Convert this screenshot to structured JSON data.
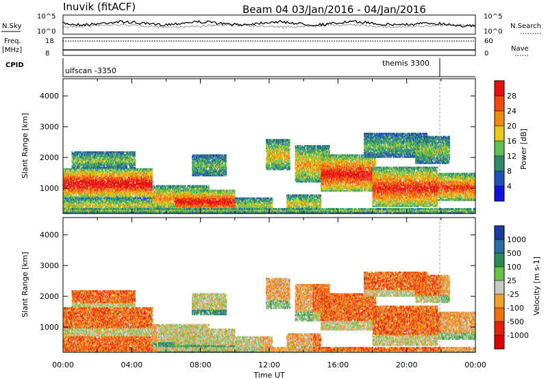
{
  "header": {
    "station": "Inuvik (fitACF)",
    "beam_dates": "Beam 04  03/Jan/2016 - 04/Jan/2016"
  },
  "status_panels": {
    "nsky_label": "N.Sky",
    "nsearch_label": "N.Search",
    "nsky_ticks": [
      "10^5",
      "10^0"
    ],
    "nsearch_ticks": [
      "10^5",
      "10^0"
    ],
    "freq_label_1": "Freq.",
    "freq_label_2": "[MHz]",
    "freq_ticks": [
      "18",
      "8"
    ],
    "nave_label": "Nave",
    "nave_ticks": [
      "60",
      "0"
    ],
    "cpid_label": "CPID",
    "cpid_segments": [
      "ulfscan -3350",
      "themis 3300"
    ]
  },
  "chart_data": [
    {
      "type": "heatmap",
      "name": "power",
      "xlabel": "",
      "ylabel": "Slant Range [km]",
      "yticks": [
        1000,
        2000,
        3000,
        4000
      ],
      "ylim": [
        180,
        4560
      ],
      "xlim_hours": [
        0,
        24
      ],
      "colorbar": {
        "label": "Power [dB]",
        "ticks": [
          "4",
          "8",
          "12",
          "16",
          "20",
          "24",
          "28"
        ],
        "colors": [
          "#1010e0",
          "#2050b8",
          "#2e8a6a",
          "#5fc05a",
          "#e8c81a",
          "#f08a10",
          "#f04a10",
          "#e81010"
        ]
      }
    },
    {
      "type": "heatmap",
      "name": "velocity",
      "xlabel": "Time UT",
      "ylabel": "Slant Range [km]",
      "yticks": [
        1000,
        2000,
        3000,
        4000
      ],
      "ylim": [
        180,
        4560
      ],
      "xlim_hours": [
        0,
        24
      ],
      "xticks": [
        "00:00",
        "04:00",
        "08:00",
        "12:00",
        "16:00",
        "20:00",
        "00:00"
      ],
      "colorbar": {
        "label": "Velocity [m s-1]",
        "ticks": [
          "1000",
          "500",
          "100",
          "25",
          "-25",
          "-100",
          "-500",
          "-1000"
        ],
        "colors": [
          "#1a3aa0",
          "#2d6aa8",
          "#2e8a55",
          "#6bc24a",
          "#c8c8c0",
          "#f0a030",
          "#f07010",
          "#e82010",
          "#d80000"
        ]
      }
    }
  ]
}
